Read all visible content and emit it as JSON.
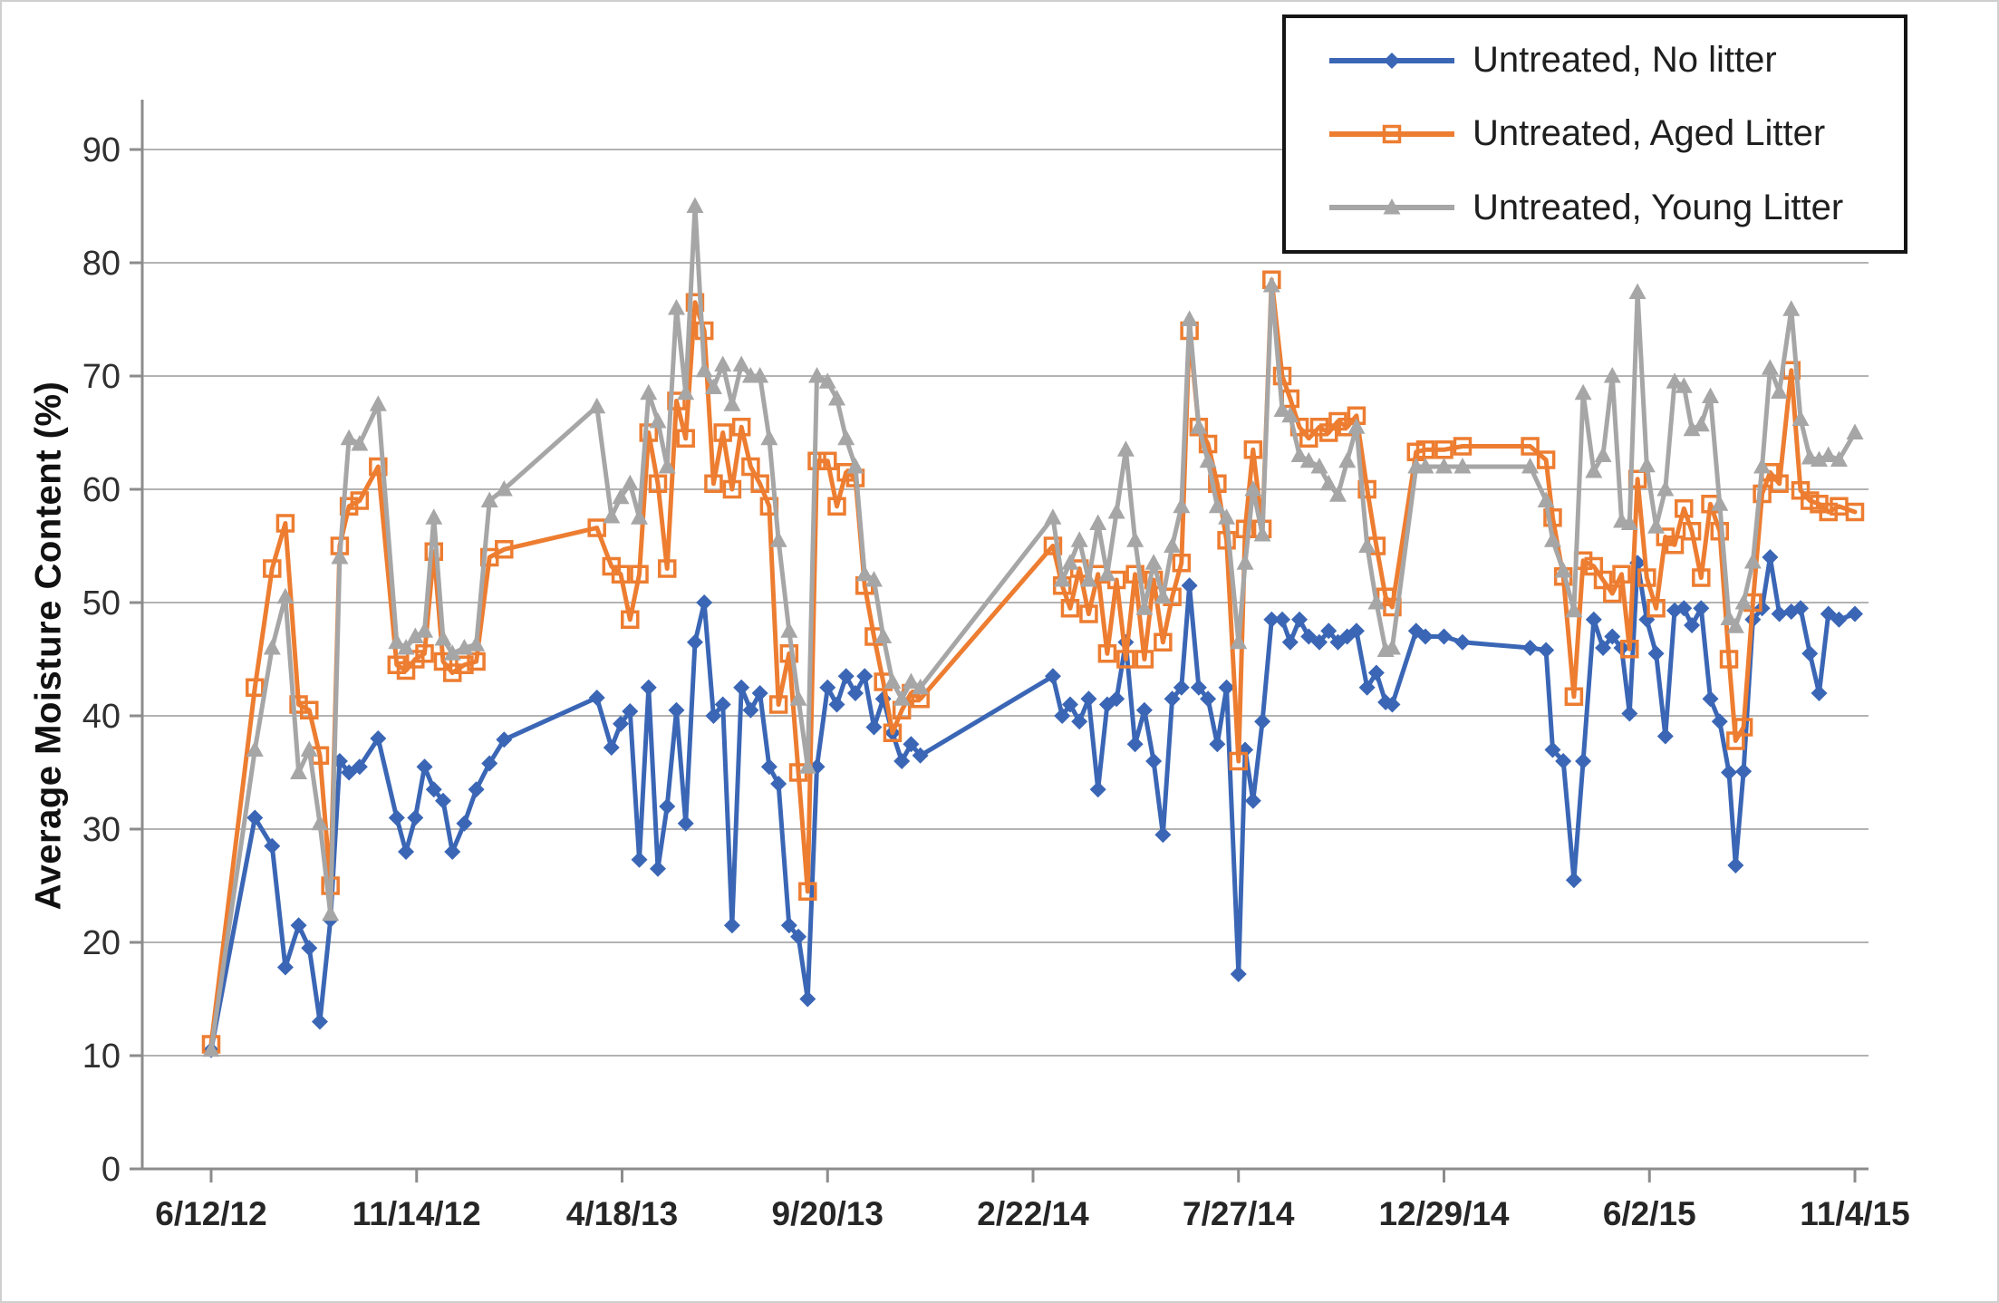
{
  "chart_data": {
    "type": "line",
    "title": "",
    "xlabel": "",
    "ylabel": "Average Moisture Content (%)",
    "ylim": [
      0,
      90
    ],
    "ytick_step": 10,
    "ytick_labels": [
      "0",
      "10",
      "20",
      "30",
      "40",
      "50",
      "60",
      "70",
      "80",
      "90"
    ],
    "grid": "horizontal gridlines at every 10",
    "legend_position": "top-right, boxed, overlapping plot",
    "x_unit": "days since 6/12/12",
    "xtick_days": [
      0,
      155,
      310,
      465,
      620,
      775,
      930,
      1085,
      1240
    ],
    "xtick_labels": [
      "6/12/12",
      "11/14/12",
      "4/18/13",
      "9/20/13",
      "2/22/14",
      "7/27/14",
      "12/29/14",
      "6/2/15",
      "11/4/15"
    ],
    "x_days": [
      0,
      33,
      46,
      56,
      66,
      74,
      82,
      90,
      97,
      104,
      112,
      126,
      140,
      147,
      154,
      161,
      168,
      175,
      182,
      191,
      200,
      210,
      221,
      291,
      302,
      309,
      316,
      323,
      330,
      337,
      344,
      351,
      358,
      365,
      372,
      379,
      386,
      393,
      400,
      407,
      414,
      421,
      428,
      436,
      443,
      450,
      457,
      465,
      472,
      479,
      486,
      493,
      500,
      507,
      514,
      521,
      528,
      535,
      635,
      642,
      648,
      655,
      662,
      669,
      676,
      683,
      690,
      697,
      704,
      711,
      718,
      725,
      732,
      738,
      745,
      752,
      759,
      766,
      775,
      780,
      786,
      793,
      800,
      808,
      814,
      821,
      828,
      836,
      843,
      850,
      857,
      864,
      872,
      879,
      886,
      891,
      909,
      916,
      930,
      944,
      995,
      1007,
      1012,
      1020,
      1028,
      1035,
      1043,
      1050,
      1057,
      1064,
      1070,
      1076,
      1083,
      1090,
      1097,
      1104,
      1111,
      1117,
      1124,
      1131,
      1138,
      1145,
      1150,
      1156,
      1163,
      1170,
      1176,
      1183,
      1192,
      1199,
      1206,
      1213,
      1220,
      1228,
      1240
    ],
    "series": [
      {
        "name": "Untreated, No litter",
        "color": "#3A66B5",
        "marker": "filled-diamond",
        "values": [
          10.5,
          31,
          28.5,
          17.8,
          21.5,
          19.5,
          13,
          22,
          36,
          35,
          35.5,
          38,
          31,
          28,
          31,
          35.5,
          33.5,
          32.5,
          28,
          30.5,
          33.5,
          35.8,
          37.9,
          41.6,
          37.2,
          39.3,
          40.4,
          27.3,
          42.5,
          26.5,
          32,
          40.5,
          30.5,
          46.5,
          50,
          40,
          41,
          21.5,
          42.5,
          40.5,
          42,
          35.5,
          34,
          21.5,
          20.5,
          15,
          35.5,
          42.5,
          41,
          43.5,
          42,
          43.5,
          39,
          41.5,
          38.5,
          36,
          37.5,
          36.5,
          43.5,
          40,
          41,
          39.5,
          41.5,
          33.5,
          41,
          41.5,
          46.5,
          37.5,
          40.5,
          36,
          29.5,
          41.5,
          42.5,
          51.5,
          42.5,
          41.5,
          37.5,
          42.5,
          17.2,
          37,
          32.5,
          39.5,
          48.5,
          48.5,
          46.5,
          48.5,
          47,
          46.5,
          47.5,
          46.5,
          47,
          47.5,
          42.5,
          43.8,
          41.2,
          41,
          47.5,
          47,
          47,
          46.5,
          46,
          45.8,
          37,
          36,
          25.5,
          36,
          48.5,
          46,
          47,
          46,
          40.2,
          53.5,
          48.5,
          45.5,
          38.2,
          49.3,
          49.5,
          48,
          49.5,
          41.5,
          39.5,
          35,
          26.8,
          35.1,
          48.5,
          49.5,
          54,
          49,
          49.2,
          49.5,
          45.5,
          42,
          49,
          48.5,
          49
        ]
      },
      {
        "name": "Untreated, Aged Litter",
        "color": "#ED7D31",
        "marker": "open-square",
        "values": [
          11,
          42.5,
          53,
          57,
          41,
          40.5,
          36.5,
          25,
          55,
          58.5,
          59,
          62,
          44.5,
          44,
          45,
          45.5,
          54.5,
          44.8,
          43.8,
          44.5,
          44.8,
          54,
          54.7,
          56.6,
          53.2,
          52.5,
          48.5,
          52.5,
          65,
          60.5,
          53,
          67.8,
          64.5,
          76.5,
          74,
          60.5,
          65,
          60,
          65.5,
          62,
          60.5,
          58.5,
          41,
          45.5,
          35,
          24.5,
          62.5,
          62.5,
          58.5,
          61.5,
          61,
          51.5,
          47,
          43,
          38.5,
          40.5,
          42,
          41.5,
          55,
          51.5,
          49.5,
          53,
          49,
          52.5,
          45.5,
          52,
          45,
          52.5,
          45,
          52,
          46.5,
          50.5,
          53.5,
          74,
          65.5,
          64,
          60.5,
          55.5,
          36,
          56.5,
          63.5,
          56.5,
          78.5,
          70,
          68,
          65.5,
          64.5,
          65.5,
          65,
          66,
          65.5,
          66.5,
          60,
          55,
          50.5,
          49.6,
          63.3,
          63.5,
          63.5,
          63.8,
          63.8,
          62.6,
          57.5,
          52.3,
          41.7,
          53.7,
          53.2,
          52,
          50.8,
          52.5,
          45.9,
          60.9,
          52.2,
          49.5,
          55.8,
          55.1,
          58.3,
          56.3,
          52.2,
          58.7,
          56.3,
          45,
          37.8,
          39,
          50,
          59.6,
          61.5,
          60.5,
          70.5,
          59.9,
          59,
          58.7,
          58,
          58.5,
          58
        ]
      },
      {
        "name": "Untreated, Young Litter",
        "color": "#A6A6A6",
        "marker": "filled-triangle",
        "values": [
          10.5,
          37,
          46,
          50.5,
          35,
          37,
          30.5,
          22.5,
          54,
          64.5,
          64,
          67.5,
          46.5,
          46,
          47,
          47.5,
          57.5,
          46.8,
          45.5,
          46,
          46.3,
          59,
          60,
          67.3,
          57.6,
          59.3,
          60.5,
          57.5,
          68.5,
          66,
          62,
          76,
          68.5,
          85,
          70.5,
          69,
          71,
          67.5,
          71,
          70,
          70,
          64.5,
          55.5,
          47.5,
          41.5,
          35.5,
          70,
          69.5,
          68,
          64.5,
          62,
          52.5,
          52,
          47,
          43,
          41.5,
          43,
          42.5,
          57.5,
          52,
          53.5,
          55.5,
          52,
          57,
          52.5,
          58,
          63.5,
          55.5,
          49.5,
          53.5,
          50.5,
          55,
          58.5,
          75,
          65.5,
          62.5,
          58.5,
          57.5,
          46.5,
          53.5,
          60,
          56,
          78,
          67,
          66.5,
          63,
          62.5,
          62,
          60.5,
          59.5,
          62.5,
          65.5,
          55,
          50,
          45.8,
          46,
          62,
          62,
          62,
          62,
          62,
          59,
          55.5,
          52.8,
          49.3,
          68.5,
          61.6,
          63,
          70,
          57.2,
          57,
          77.4,
          62.1,
          56.7,
          60,
          69.5,
          69.1,
          65.3,
          65.7,
          68.2,
          58.7,
          48.6,
          47.9,
          50,
          53.6,
          62,
          70.7,
          68.6,
          75.9,
          66.2,
          62.8,
          62.6,
          63,
          62.6,
          65
        ]
      }
    ]
  },
  "style": {
    "gridline_color": "#b3b3b3",
    "axis_color": "#8c8c8c",
    "background_color": "#ffffff",
    "legend_border_color": "#151515"
  }
}
